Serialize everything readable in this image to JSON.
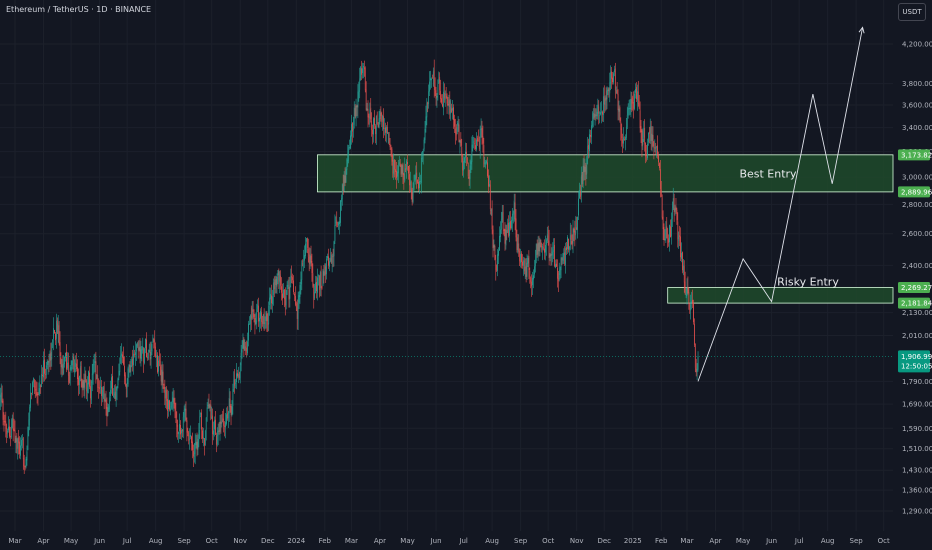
{
  "header": {
    "symbol_title": "Ethereum / TetherUS · 1D · BINANCE",
    "currency_badge": "USDT"
  },
  "colors": {
    "background": "#131722",
    "up_candle": "#26a69a",
    "down_candle": "#ef5350",
    "zone_fill": "#1f4a2a",
    "zone_border": "#d8ffdc",
    "price_badge": "#089981",
    "level_badge": "#4caf50",
    "axis_text": "#b2b5be",
    "projection_line": "#e0e3eb"
  },
  "chart_data": {
    "type": "candlestick",
    "title": "Ethereum / TetherUS · 1D · BINANCE",
    "y_scale": "log",
    "ylim": [
      1230,
      4500
    ],
    "y_ticks": [
      1290,
      1360,
      1430,
      1510,
      1590,
      1690,
      1790,
      2010,
      2130,
      2400,
      2600,
      2800,
      3000,
      3200,
      3400,
      3600,
      3800,
      4200
    ],
    "y_tick_labels": [
      "1,290.00",
      "1,360.00",
      "1,430.00",
      "1,510.00",
      "1,590.00",
      "1,690.00",
      "1,790.00",
      "2,010.00",
      "2,130.00",
      "2,400.00",
      "2,600.00",
      "2,800.00",
      "3,000.00",
      "3,200.00",
      "3,400.00",
      "3,600.00",
      "3,800.00",
      "4,200.00"
    ],
    "x_ticks": [
      {
        "label": "Mar",
        "date": "2023-03-01"
      },
      {
        "label": "Apr",
        "date": "2023-04-01"
      },
      {
        "label": "May",
        "date": "2023-05-01"
      },
      {
        "label": "Jun",
        "date": "2023-06-01"
      },
      {
        "label": "Jul",
        "date": "2023-07-01"
      },
      {
        "label": "Aug",
        "date": "2023-08-01"
      },
      {
        "label": "Sep",
        "date": "2023-09-01"
      },
      {
        "label": "Oct",
        "date": "2023-10-01"
      },
      {
        "label": "Nov",
        "date": "2023-11-01"
      },
      {
        "label": "Dec",
        "date": "2023-12-01"
      },
      {
        "label": "2024",
        "date": "2024-01-01"
      },
      {
        "label": "Feb",
        "date": "2024-02-01"
      },
      {
        "label": "Mar",
        "date": "2024-03-01"
      },
      {
        "label": "Apr",
        "date": "2024-04-01"
      },
      {
        "label": "May",
        "date": "2024-05-01"
      },
      {
        "label": "Jun",
        "date": "2024-06-01"
      },
      {
        "label": "Jul",
        "date": "2024-07-01"
      },
      {
        "label": "Aug",
        "date": "2024-08-01"
      },
      {
        "label": "Sep",
        "date": "2024-09-01"
      },
      {
        "label": "Oct",
        "date": "2024-10-01"
      },
      {
        "label": "Nov",
        "date": "2024-11-01"
      },
      {
        "label": "Dec",
        "date": "2024-12-01"
      },
      {
        "label": "2025",
        "date": "2025-01-01"
      },
      {
        "label": "Feb",
        "date": "2025-02-01"
      },
      {
        "label": "Mar",
        "date": "2025-03-01"
      },
      {
        "label": "Apr",
        "date": "2025-04-01"
      },
      {
        "label": "May",
        "date": "2025-05-01"
      },
      {
        "label": "Jun",
        "date": "2025-06-01"
      },
      {
        "label": "Jul",
        "date": "2025-07-01"
      },
      {
        "label": "Aug",
        "date": "2025-08-01"
      },
      {
        "label": "Sep",
        "date": "2025-09-01"
      },
      {
        "label": "Oct",
        "date": "2025-10-01"
      }
    ],
    "price_path": [
      {
        "date": "2023-02-10",
        "price": 1670
      },
      {
        "date": "2023-02-25",
        "price": 1620
      },
      {
        "date": "2023-03-10",
        "price": 1420
      },
      {
        "date": "2023-03-20",
        "price": 1760
      },
      {
        "date": "2023-04-05",
        "price": 1870
      },
      {
        "date": "2023-04-15",
        "price": 2090
      },
      {
        "date": "2023-04-25",
        "price": 1860
      },
      {
        "date": "2023-05-10",
        "price": 1830
      },
      {
        "date": "2023-05-25",
        "price": 1800
      },
      {
        "date": "2023-06-10",
        "price": 1740
      },
      {
        "date": "2023-06-20",
        "price": 1730
      },
      {
        "date": "2023-07-05",
        "price": 1940
      },
      {
        "date": "2023-07-20",
        "price": 1900
      },
      {
        "date": "2023-08-05",
        "price": 1830
      },
      {
        "date": "2023-08-17",
        "price": 1680
      },
      {
        "date": "2023-09-01",
        "price": 1650
      },
      {
        "date": "2023-09-12",
        "price": 1560
      },
      {
        "date": "2023-09-25",
        "price": 1610
      },
      {
        "date": "2023-10-12",
        "price": 1540
      },
      {
        "date": "2023-10-25",
        "price": 1780
      },
      {
        "date": "2023-11-10",
        "price": 2050
      },
      {
        "date": "2023-11-25",
        "price": 2080
      },
      {
        "date": "2023-12-08",
        "price": 2300
      },
      {
        "date": "2023-12-20",
        "price": 2200
      },
      {
        "date": "2024-01-05",
        "price": 2250
      },
      {
        "date": "2024-01-12",
        "price": 2580
      },
      {
        "date": "2024-01-23",
        "price": 2220
      },
      {
        "date": "2024-02-10",
        "price": 2500
      },
      {
        "date": "2024-02-25",
        "price": 3100
      },
      {
        "date": "2024-03-12",
        "price": 4000
      },
      {
        "date": "2024-03-20",
        "price": 3350
      },
      {
        "date": "2024-04-01",
        "price": 3500
      },
      {
        "date": "2024-04-15",
        "price": 3050
      },
      {
        "date": "2024-05-01",
        "price": 2950
      },
      {
        "date": "2024-05-12",
        "price": 2920
      },
      {
        "date": "2024-05-25",
        "price": 3750
      },
      {
        "date": "2024-06-08",
        "price": 3700
      },
      {
        "date": "2024-06-24",
        "price": 3350
      },
      {
        "date": "2024-07-05",
        "price": 3000
      },
      {
        "date": "2024-07-20",
        "price": 3450
      },
      {
        "date": "2024-08-05",
        "price": 2450
      },
      {
        "date": "2024-08-25",
        "price": 2700
      },
      {
        "date": "2024-09-06",
        "price": 2300
      },
      {
        "date": "2024-09-25",
        "price": 2600
      },
      {
        "date": "2024-10-10",
        "price": 2400
      },
      {
        "date": "2024-10-25",
        "price": 2500
      },
      {
        "date": "2024-11-10",
        "price": 3200
      },
      {
        "date": "2024-11-25",
        "price": 3400
      },
      {
        "date": "2024-12-08",
        "price": 3950
      },
      {
        "date": "2024-12-20",
        "price": 3400
      },
      {
        "date": "2025-01-05",
        "price": 3650
      },
      {
        "date": "2025-01-15",
        "price": 3250
      },
      {
        "date": "2025-01-30",
        "price": 3300
      },
      {
        "date": "2025-02-03",
        "price": 2650
      },
      {
        "date": "2025-02-15",
        "price": 2700
      },
      {
        "date": "2025-02-25",
        "price": 2300
      },
      {
        "date": "2025-03-05",
        "price": 2200
      },
      {
        "date": "2025-03-11",
        "price": 1880
      },
      {
        "date": "2025-03-13",
        "price": 1906.99
      }
    ],
    "zones": [
      {
        "name": "best-entry-zone",
        "label": "Best Entry",
        "start": "2024-01-24",
        "low": 2889.96,
        "high": 3173.82
      },
      {
        "name": "risky-entry-zone",
        "label": "Risky Entry",
        "start": "2025-02-08",
        "low": 2181.84,
        "high": 2269.27
      }
    ],
    "projection": [
      {
        "date": "2025-03-13",
        "price": 1790
      },
      {
        "date": "2025-05-01",
        "price": 2440
      },
      {
        "date": "2025-06-01",
        "price": 2190
      },
      {
        "date": "2025-07-16",
        "price": 3700
      },
      {
        "date": "2025-08-06",
        "price": 2950
      },
      {
        "date": "2025-09-08",
        "price": 4380
      }
    ],
    "level_badges": [
      {
        "value": 3173.82,
        "label": "3,173.82"
      },
      {
        "value": 2889.96,
        "label": "2,889.96"
      },
      {
        "value": 2269.27,
        "label": "2,269.27"
      },
      {
        "value": 2181.84,
        "label": "2,181.84"
      }
    ],
    "last_price": {
      "value": 1906.99,
      "label": "1,906.99",
      "countdown": "12:50:05"
    }
  }
}
